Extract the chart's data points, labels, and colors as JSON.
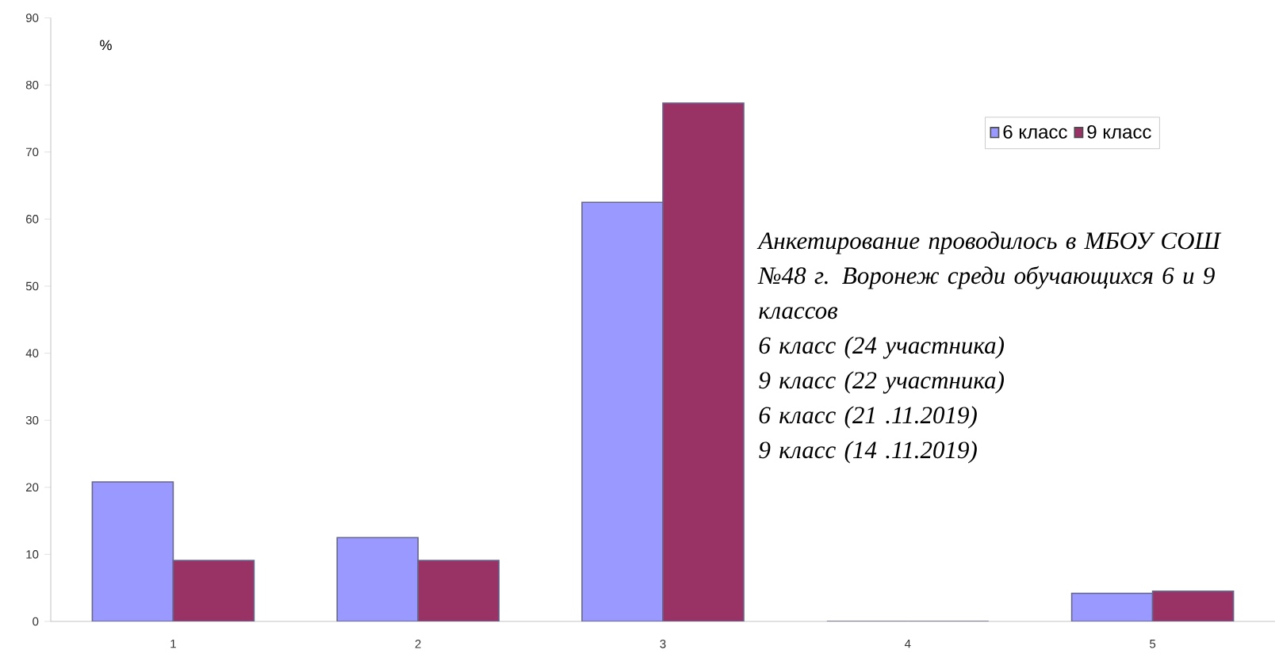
{
  "chart_data": {
    "type": "bar",
    "ylabel": "%",
    "categories": [
      "1",
      "2",
      "3",
      "4",
      "5"
    ],
    "series": [
      {
        "name": "6 класс",
        "color": "#9999ff",
        "values": [
          20.8,
          12.5,
          62.5,
          0,
          4.2
        ]
      },
      {
        "name": "9 класс",
        "color": "#993366",
        "values": [
          9.1,
          9.1,
          77.3,
          0,
          4.5
        ]
      }
    ],
    "ylim": [
      0,
      90
    ],
    "yticks": [
      0,
      10,
      20,
      30,
      40,
      50,
      60,
      70,
      80,
      90
    ],
    "legend": "top right",
    "grid": false,
    "annotations": [
      "Анкетирование проводилось в МБОУ СОШ №48 г. Воронеж среди обучающихся 6 и 9 классов",
      "6 класс  (24 участника)",
      "9 класс (22 участника)",
      "6 класс (21 .11.2019)",
      "9 класс (14 .11.2019)"
    ]
  }
}
